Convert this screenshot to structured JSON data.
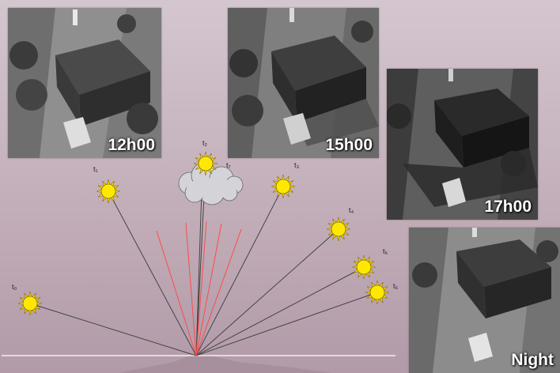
{
  "scenes": [
    {
      "label": "12h00"
    },
    {
      "label": "15h00"
    },
    {
      "label": "17h00"
    },
    {
      "label": "Night"
    }
  ],
  "diagram": {
    "suns": [
      {
        "label": "t₀"
      },
      {
        "label": "t₁"
      },
      {
        "label": "t₂"
      },
      {
        "label": "t₃"
      },
      {
        "label": "t₄"
      },
      {
        "label": "t₅"
      },
      {
        "label": "t₆"
      },
      {
        "label": "t₇"
      }
    ],
    "colors": {
      "sun_fill": "#ffe800",
      "sun_rays": "#8a6d00",
      "ray_line": "#444444",
      "diffuse_ray": "#ff4a4a",
      "cloud": "#d4d4d8"
    }
  }
}
